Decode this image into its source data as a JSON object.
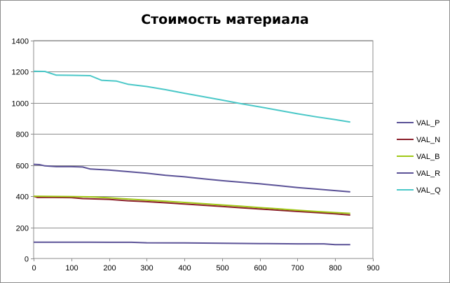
{
  "chart_data": {
    "type": "line",
    "title": "Стоимость материала",
    "xlabel": "",
    "ylabel": "",
    "xlim": [
      0,
      900
    ],
    "ylim": [
      0,
      1400
    ],
    "x_ticks": [
      "0",
      "100",
      "200",
      "300",
      "400",
      "500",
      "600",
      "700",
      "800",
      "900"
    ],
    "y_ticks": [
      "0",
      "200",
      "400",
      "600",
      "800",
      "1000",
      "1200",
      "1400"
    ],
    "grid": "horizontal",
    "legend_position": "right",
    "series": [
      {
        "name": "VAL_P",
        "color": "#5b5297",
        "x": [
          0,
          100,
          200,
          260,
          300,
          400,
          500,
          600,
          700,
          770,
          800,
          840
        ],
        "y": [
          105,
          105,
          104,
          104,
          101,
          100,
          98,
          96,
          94,
          94,
          89,
          89
        ]
      },
      {
        "name": "VAL_N",
        "color": "#8b1f2a",
        "x": [
          0,
          10,
          50,
          100,
          130,
          200,
          250,
          300,
          350,
          400,
          450,
          500,
          550,
          600,
          650,
          700,
          750,
          800,
          840
        ],
        "y": [
          400,
          392,
          392,
          391,
          385,
          380,
          371,
          365,
          358,
          350,
          342,
          334,
          326,
          318,
          310,
          302,
          295,
          287,
          279
        ]
      },
      {
        "name": "VAL_B",
        "color": "#a0c817",
        "x": [
          0,
          50,
          100,
          150,
          200,
          250,
          300,
          350,
          400,
          450,
          500,
          550,
          600,
          650,
          700,
          750,
          800,
          840
        ],
        "y": [
          400,
          399,
          398,
          396,
          390,
          382,
          375,
          368,
          360,
          352,
          344,
          336,
          327,
          319,
          310,
          302,
          295,
          290
        ]
      },
      {
        "name": "VAL_R",
        "color": "#5b5297",
        "x": [
          0,
          15,
          30,
          60,
          100,
          130,
          150,
          200,
          250,
          300,
          350,
          400,
          450,
          500,
          550,
          600,
          650,
          700,
          750,
          800,
          840
        ],
        "y": [
          605,
          603,
          595,
          590,
          590,
          588,
          575,
          568,
          558,
          548,
          535,
          525,
          512,
          500,
          490,
          480,
          468,
          456,
          446,
          436,
          428
        ]
      },
      {
        "name": "VAL_Q",
        "color": "#4bc8c8",
        "x": [
          0,
          30,
          60,
          100,
          150,
          180,
          220,
          250,
          300,
          350,
          400,
          450,
          500,
          550,
          600,
          650,
          700,
          750,
          800,
          840
        ],
        "y": [
          1203,
          1202,
          1178,
          1177,
          1175,
          1145,
          1140,
          1120,
          1105,
          1085,
          1062,
          1040,
          1018,
          995,
          974,
          952,
          930,
          910,
          892,
          877
        ]
      }
    ]
  }
}
